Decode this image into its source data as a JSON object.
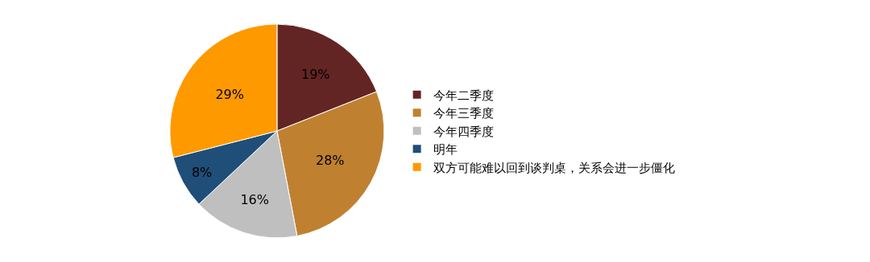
{
  "chart_data": {
    "type": "pie",
    "categories": [
      "今年二季度",
      "今年三季度",
      "今年四季度",
      "明年",
      "双方可能难以回到谈判桌，关系会进一步僵化"
    ],
    "values": [
      19,
      28,
      16,
      8,
      29
    ],
    "value_labels": [
      "19%",
      "28%",
      "16%",
      "8%",
      "29%"
    ],
    "colors": [
      "#632523",
      "#bf8130",
      "#bfbfbf",
      "#1f4e79",
      "#ff9900"
    ],
    "legend": "right"
  }
}
